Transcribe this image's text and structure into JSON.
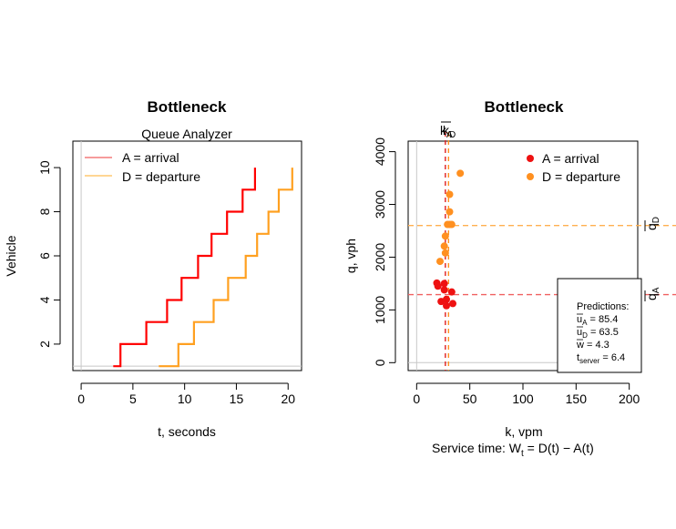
{
  "chart_data": [
    {
      "type": "line",
      "title": "Bottleneck",
      "subtitle": "Queue Analyzer",
      "xlabel": "t, seconds",
      "ylabel": "Vehicle",
      "xlim": [
        -0.8,
        21.3
      ],
      "ylim": [
        0.8,
        11.2
      ],
      "xticks": [
        0,
        5,
        10,
        15,
        20
      ],
      "yticks": [
        2,
        4,
        6,
        8,
        10
      ],
      "legend_position": "top-left",
      "series": [
        {
          "name": "A = arrival",
          "color": "#ff0000",
          "legend_color": "#f47a7a",
          "step_points": [
            [
              3.1,
              1
            ],
            [
              3.8,
              1
            ],
            [
              3.8,
              2
            ],
            [
              6.3,
              2
            ],
            [
              6.3,
              3
            ],
            [
              8.3,
              3
            ],
            [
              8.3,
              4
            ],
            [
              9.7,
              4
            ],
            [
              9.7,
              5
            ],
            [
              11.3,
              5
            ],
            [
              11.3,
              6
            ],
            [
              12.6,
              6
            ],
            [
              12.6,
              7
            ],
            [
              14.1,
              7
            ],
            [
              14.1,
              8
            ],
            [
              15.6,
              8
            ],
            [
              15.6,
              9
            ],
            [
              16.8,
              9
            ],
            [
              16.8,
              10
            ]
          ]
        },
        {
          "name": "D = departure",
          "color": "#ffa020",
          "legend_color": "#ffc870",
          "step_points": [
            [
              7.5,
              1
            ],
            [
              9.4,
              1
            ],
            [
              9.4,
              2
            ],
            [
              10.9,
              2
            ],
            [
              10.9,
              3
            ],
            [
              12.8,
              3
            ],
            [
              12.8,
              4
            ],
            [
              14.2,
              4
            ],
            [
              14.2,
              5
            ],
            [
              15.9,
              5
            ],
            [
              15.9,
              6
            ],
            [
              17.0,
              6
            ],
            [
              17.0,
              7
            ],
            [
              18.1,
              7
            ],
            [
              18.1,
              8
            ],
            [
              19.1,
              8
            ],
            [
              19.1,
              9
            ],
            [
              20.4,
              9
            ],
            [
              20.4,
              10
            ]
          ]
        }
      ]
    },
    {
      "type": "scatter",
      "title": "Bottleneck",
      "xlabel": "k, vpm",
      "ylabel": "q, vph",
      "footer": "Service time: W",
      "footer_sub": "t",
      "footer_rest": " = D(t) − A(t)",
      "xlim": [
        -8,
        208
      ],
      "ylim": [
        -150,
        4200
      ],
      "xticks": [
        0,
        50,
        100,
        150,
        200
      ],
      "yticks": [
        0,
        1000,
        2000,
        3000,
        4000
      ],
      "legend_position": "top-right",
      "top_labels": [
        "k",
        "A",
        "k",
        "D"
      ],
      "right_labels": {
        "qD": "q",
        "qD_sub": "D",
        "qA": "q",
        "qA_sub": "A"
      },
      "ref_lines": {
        "kA": 27,
        "kD": 30,
        "qA": 1290,
        "qD": 2600
      },
      "series": [
        {
          "name": "A = arrival",
          "color": "#ee1111",
          "points": [
            [
              19,
              1510
            ],
            [
              20,
              1450
            ],
            [
              26,
              1500
            ],
            [
              26,
              1380
            ],
            [
              28,
              1200
            ],
            [
              28,
              1080
            ],
            [
              23,
              1160
            ],
            [
              34,
              1120
            ],
            [
              33,
              1340
            ]
          ]
        },
        {
          "name": "D = departure",
          "color": "#ff9020",
          "points": [
            [
              41,
              3590
            ],
            [
              31,
              3190
            ],
            [
              31,
              2860
            ],
            [
              31,
              2620
            ],
            [
              27,
              2400
            ],
            [
              26,
              2210
            ],
            [
              22,
              1920
            ],
            [
              29,
              2620
            ],
            [
              33,
              2620
            ],
            [
              27,
              2080
            ]
          ]
        }
      ],
      "predictions": {
        "heading": "Predictions:",
        "rows": [
          {
            "sym": "u",
            "bar": true,
            "sub": "A",
            "value": " = 85.4"
          },
          {
            "sym": "u",
            "bar": true,
            "sub": "D",
            "value": " = 63.5"
          },
          {
            "sym": "w",
            "bar": true,
            "sub": "",
            "value": " = 4.3"
          },
          {
            "sym": "t",
            "bar": false,
            "sub": "server",
            "value": " = 6.4"
          }
        ]
      }
    }
  ]
}
